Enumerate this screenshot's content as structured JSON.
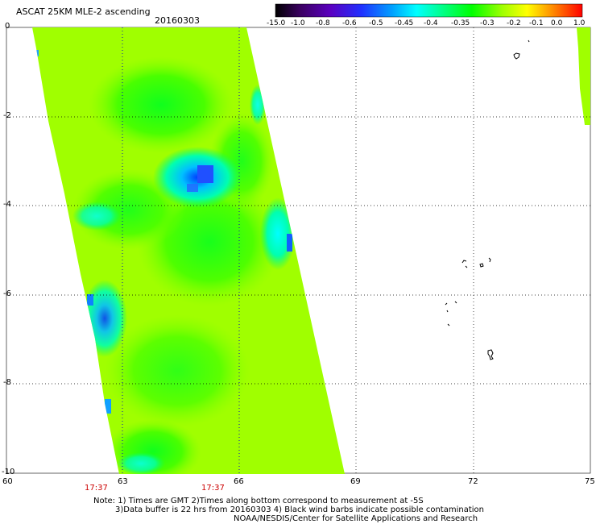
{
  "header": {
    "title": "ASCAT 25KM MLE-2 ascending",
    "date": "20160303"
  },
  "colorbar": {
    "labels": [
      "-15.0",
      "-1.0",
      "-0.8",
      "-0.6",
      "-0.5",
      "-0.45",
      "-0.4",
      "-0.35",
      "-0.3",
      "-0.2",
      "-0.1",
      "0.0",
      "1.0"
    ],
    "colors": [
      "#000000",
      "#3a0060",
      "#6a00b0",
      "#3000ff",
      "#0060ff",
      "#00b0ff",
      "#00ffff",
      "#00ff90",
      "#00ff00",
      "#a0ff00",
      "#ffff00",
      "#ff9000",
      "#ff0000"
    ]
  },
  "axes": {
    "x_ticks": [
      "60",
      "63",
      "66",
      "69",
      "72",
      "75"
    ],
    "y_ticks": [
      "0",
      "-2",
      "-4",
      "-6",
      "-8",
      "-10"
    ],
    "time_labels": [
      "17:37",
      "17:37"
    ]
  },
  "notes": {
    "line1": "Note: 1) Times are GMT 2)Times along bottom correspond to measurement at -5S",
    "line2": "3)Data buffer is 22 hrs from 20160303 4) Black wind barbs indicate possible contamination",
    "line3": "NOAA/NESDIS/Center for Satellite Applications and Research"
  },
  "map": {
    "lon_range": [
      60,
      75
    ],
    "lat_range": [
      -10,
      0
    ],
    "swath_color": "#a0ff00"
  }
}
